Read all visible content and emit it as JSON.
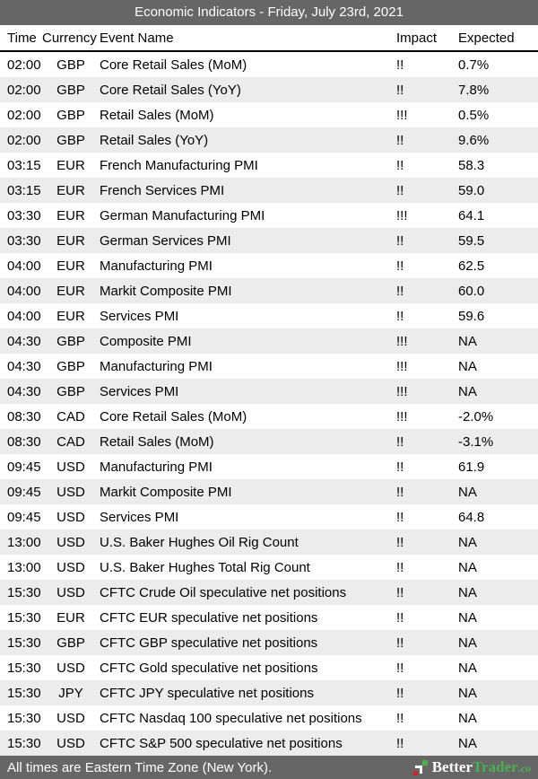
{
  "title_bar": {
    "title": "Economic Indicators - Friday, July 23rd, 2021"
  },
  "table": {
    "columns": [
      "Time",
      "Currency",
      "Event Name",
      "Impact",
      "Expected"
    ],
    "rows": [
      {
        "time": "02:00",
        "currency": "GBP",
        "event": "Core Retail Sales (MoM)",
        "impact": "!!",
        "expected": "0.7%"
      },
      {
        "time": "02:00",
        "currency": "GBP",
        "event": "Core Retail Sales (YoY)",
        "impact": "!!",
        "expected": "7.8%"
      },
      {
        "time": "02:00",
        "currency": "GBP",
        "event": "Retail Sales (MoM)",
        "impact": "!!!",
        "expected": "0.5%"
      },
      {
        "time": "02:00",
        "currency": "GBP",
        "event": "Retail Sales (YoY)",
        "impact": "!!",
        "expected": "9.6%"
      },
      {
        "time": "03:15",
        "currency": "EUR",
        "event": "French Manufacturing PMI",
        "impact": "!!",
        "expected": "58.3"
      },
      {
        "time": "03:15",
        "currency": "EUR",
        "event": "French Services PMI",
        "impact": "!!",
        "expected": "59.0"
      },
      {
        "time": "03:30",
        "currency": "EUR",
        "event": "German Manufacturing PMI",
        "impact": "!!!",
        "expected": "64.1"
      },
      {
        "time": "03:30",
        "currency": "EUR",
        "event": "German Services PMI",
        "impact": "!!",
        "expected": "59.5"
      },
      {
        "time": "04:00",
        "currency": "EUR",
        "event": "Manufacturing PMI",
        "impact": "!!",
        "expected": "62.5"
      },
      {
        "time": "04:00",
        "currency": "EUR",
        "event": "Markit Composite PMI",
        "impact": "!!",
        "expected": "60.0"
      },
      {
        "time": "04:00",
        "currency": "EUR",
        "event": "Services PMI",
        "impact": "!!",
        "expected": "59.6"
      },
      {
        "time": "04:30",
        "currency": "GBP",
        "event": "Composite PMI",
        "impact": "!!!",
        "expected": "NA"
      },
      {
        "time": "04:30",
        "currency": "GBP",
        "event": "Manufacturing PMI",
        "impact": "!!!",
        "expected": "NA"
      },
      {
        "time": "04:30",
        "currency": "GBP",
        "event": "Services PMI",
        "impact": "!!!",
        "expected": "NA"
      },
      {
        "time": "08:30",
        "currency": "CAD",
        "event": "Core Retail Sales (MoM)",
        "impact": "!!!",
        "expected": "-2.0%"
      },
      {
        "time": "08:30",
        "currency": "CAD",
        "event": "Retail Sales (MoM)",
        "impact": "!!",
        "expected": "-3.1%"
      },
      {
        "time": "09:45",
        "currency": "USD",
        "event": "Manufacturing PMI",
        "impact": "!!",
        "expected": "61.9"
      },
      {
        "time": "09:45",
        "currency": "USD",
        "event": "Markit Composite PMI",
        "impact": "!!",
        "expected": "NA"
      },
      {
        "time": "09:45",
        "currency": "USD",
        "event": "Services PMI",
        "impact": "!!",
        "expected": "64.8"
      },
      {
        "time": "13:00",
        "currency": "USD",
        "event": "U.S. Baker Hughes Oil Rig Count",
        "impact": "!!",
        "expected": "NA"
      },
      {
        "time": "13:00",
        "currency": "USD",
        "event": "U.S. Baker Hughes Total Rig Count",
        "impact": "!!",
        "expected": "NA"
      },
      {
        "time": "15:30",
        "currency": "USD",
        "event": "CFTC Crude Oil speculative net positions",
        "impact": "!!",
        "expected": "NA"
      },
      {
        "time": "15:30",
        "currency": "EUR",
        "event": "CFTC EUR speculative net positions",
        "impact": "!!",
        "expected": "NA"
      },
      {
        "time": "15:30",
        "currency": "GBP",
        "event": "CFTC GBP speculative net positions",
        "impact": "!!",
        "expected": "NA"
      },
      {
        "time": "15:30",
        "currency": "USD",
        "event": "CFTC Gold speculative net positions",
        "impact": "!!",
        "expected": "NA"
      },
      {
        "time": "15:30",
        "currency": "JPY",
        "event": "CFTC JPY speculative net positions",
        "impact": "!!",
        "expected": "NA"
      },
      {
        "time": "15:30",
        "currency": "USD",
        "event": "CFTC Nasdaq 100 speculative net positions",
        "impact": "!!",
        "expected": "NA"
      },
      {
        "time": "15:30",
        "currency": "USD",
        "event": "CFTC S&P 500 speculative net positions",
        "impact": "!!",
        "expected": "NA"
      }
    ]
  },
  "footer": {
    "note": "All times are Eastern Time Zone (New York).",
    "brand": {
      "icon": "bettertrader-logo-icon",
      "name_primary": "Better",
      "name_secondary": "Trader",
      "tld": ".co"
    }
  },
  "colors": {
    "bar_bg": "#666666",
    "bar_text": "#ffffff",
    "row_alt_bg": "#ececec",
    "text": "#000000",
    "brand_green": "#4caf50",
    "logo_red": "#c62828",
    "header_rule": "#000000"
  }
}
